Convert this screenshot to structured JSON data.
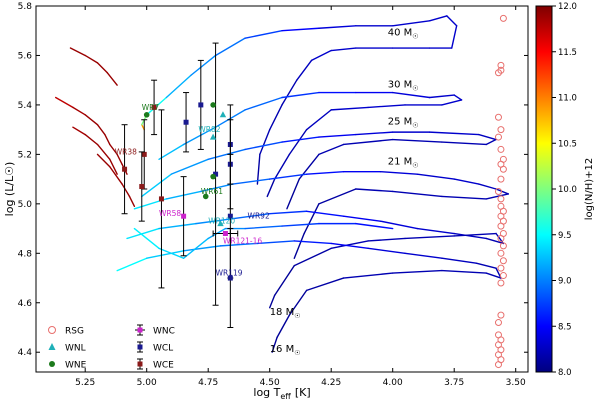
{
  "chart_data": {
    "type": "scatter",
    "xlabel_main": "log T",
    "xlabel_sub": "eff",
    "xlabel_unit": "[K]",
    "ylabel": "log (L/L☉)",
    "xlim": [
      5.45,
      3.45
    ],
    "ylim": [
      4.32,
      5.8
    ],
    "x_inverted": true,
    "xticks": [
      5.25,
      5.0,
      4.75,
      4.5,
      4.25,
      4.0,
      3.75,
      3.5
    ],
    "xtick_labels": [
      "5.25",
      "5.00",
      "4.75",
      "4.50",
      "4.25",
      "4.00",
      "3.75",
      "3.50"
    ],
    "yticks": [
      4.4,
      4.6,
      4.8,
      5.0,
      5.2,
      5.4,
      5.6,
      5.8
    ],
    "ytick_labels": [
      "4.4",
      "4.6",
      "4.8",
      "5.0",
      "5.2",
      "5.4",
      "5.6",
      "5.8"
    ],
    "colorbar": {
      "label": "log(N/H)+12",
      "min": 8.0,
      "max": 12.0,
      "ticks": [
        8.0,
        8.5,
        9.0,
        9.5,
        10.0,
        10.5,
        11.0,
        11.5,
        12.0
      ],
      "tick_labels": [
        "8.0",
        "8.5",
        "9.0",
        "9.5",
        "10.0",
        "10.5",
        "11.0",
        "11.5",
        "12.0"
      ],
      "colors": [
        "#00007f",
        "#0000ff",
        "#007fff",
        "#00ffff",
        "#7fff7f",
        "#ffff00",
        "#ff7f00",
        "#ff0000",
        "#7f0000"
      ]
    },
    "legend": {
      "placement": "bottom-left",
      "entries": [
        {
          "label": "RSG",
          "marker": "open-circle",
          "color": "#e8706e"
        },
        {
          "label": "WNL",
          "marker": "triangle",
          "color": "#1fb0b8"
        },
        {
          "label": "WNE",
          "marker": "circle",
          "color": "#1c7a1c"
        },
        {
          "label": "WNC",
          "marker": "errorbar-square",
          "color": "#cc22cc"
        },
        {
          "label": "WCL",
          "marker": "errorbar-square",
          "color": "#1a1a90"
        },
        {
          "label": "WCE",
          "marker": "errorbar-square",
          "color": "#8b1a1a"
        }
      ]
    },
    "track_labels": [
      {
        "text": "40 M",
        "x": 4.02,
        "y": 5.68
      },
      {
        "text": "30 M",
        "x": 4.02,
        "y": 5.47
      },
      {
        "text": "25 M",
        "x": 4.02,
        "y": 5.32
      },
      {
        "text": "21 M",
        "x": 4.02,
        "y": 5.16
      },
      {
        "text": "18 M",
        "x": 4.5,
        "y": 4.55
      },
      {
        "text": "16 M",
        "x": 4.5,
        "y": 4.4
      }
    ],
    "star_labels": [
      {
        "text": "WR7",
        "x": 5.02,
        "y": 5.38,
        "color": "#1c7a1c"
      },
      {
        "text": "WR38",
        "x": 5.13,
        "y": 5.2,
        "color": "#8b1a1a"
      },
      {
        "text": "WR82",
        "x": 4.79,
        "y": 5.29,
        "color": "#1fb0b8"
      },
      {
        "text": "WR61",
        "x": 4.78,
        "y": 5.04,
        "color": "#1c7a1c"
      },
      {
        "text": "WR58",
        "x": 4.95,
        "y": 4.95,
        "color": "#cc22cc"
      },
      {
        "text": "WR120",
        "x": 4.75,
        "y": 4.92,
        "color": "#1fb0b8"
      },
      {
        "text": "WR92",
        "x": 4.59,
        "y": 4.94,
        "color": "#1a1a90"
      },
      {
        "text": "WR121-16",
        "x": 4.69,
        "y": 4.84,
        "color": "#cc22cc"
      },
      {
        "text": "WR119",
        "x": 4.72,
        "y": 4.71,
        "color": "#1a1a90"
      }
    ],
    "rsg": [
      {
        "x": 3.55,
        "y": 5.75
      },
      {
        "x": 3.56,
        "y": 5.56
      },
      {
        "x": 3.56,
        "y": 5.54
      },
      {
        "x": 3.57,
        "y": 5.53
      },
      {
        "x": 3.57,
        "y": 5.35
      },
      {
        "x": 3.56,
        "y": 5.3
      },
      {
        "x": 3.57,
        "y": 5.27
      },
      {
        "x": 3.56,
        "y": 5.22
      },
      {
        "x": 3.55,
        "y": 5.18
      },
      {
        "x": 3.56,
        "y": 5.16
      },
      {
        "x": 3.55,
        "y": 5.14
      },
      {
        "x": 3.56,
        "y": 5.1
      },
      {
        "x": 3.57,
        "y": 5.05
      },
      {
        "x": 3.56,
        "y": 5.02
      },
      {
        "x": 3.56,
        "y": 4.99
      },
      {
        "x": 3.55,
        "y": 4.97
      },
      {
        "x": 3.56,
        "y": 4.95
      },
      {
        "x": 3.55,
        "y": 4.93
      },
      {
        "x": 3.56,
        "y": 4.91
      },
      {
        "x": 3.55,
        "y": 4.88
      },
      {
        "x": 3.56,
        "y": 4.86
      },
      {
        "x": 3.55,
        "y": 4.83
      },
      {
        "x": 3.56,
        "y": 4.8
      },
      {
        "x": 3.55,
        "y": 4.77
      },
      {
        "x": 3.56,
        "y": 4.74
      },
      {
        "x": 3.55,
        "y": 4.71
      },
      {
        "x": 3.56,
        "y": 4.68
      },
      {
        "x": 3.56,
        "y": 4.55
      },
      {
        "x": 3.57,
        "y": 4.52
      },
      {
        "x": 3.57,
        "y": 4.47
      },
      {
        "x": 3.56,
        "y": 4.45
      },
      {
        "x": 3.57,
        "y": 4.43
      },
      {
        "x": 3.56,
        "y": 4.41
      },
      {
        "x": 3.57,
        "y": 4.39
      },
      {
        "x": 3.56,
        "y": 4.37
      },
      {
        "x": 3.57,
        "y": 4.35
      }
    ],
    "wnl": [
      {
        "x": 4.69,
        "y": 5.36
      },
      {
        "x": 4.73,
        "y": 5.27
      },
      {
        "x": 4.7,
        "y": 4.92
      }
    ],
    "wne": [
      {
        "x": 5.0,
        "y": 5.36
      },
      {
        "x": 4.73,
        "y": 5.4
      },
      {
        "x": 4.76,
        "y": 5.03
      },
      {
        "x": 4.73,
        "y": 5.11
      }
    ],
    "wnc": [
      {
        "x": 4.85,
        "y": 4.95,
        "yerr": 0.16
      },
      {
        "x": 4.68,
        "y": 4.88,
        "xerr": 0.05
      }
    ],
    "wcl": [
      {
        "x": 4.84,
        "y": 5.33,
        "yerr": 0.12
      },
      {
        "x": 4.78,
        "y": 5.4,
        "yerr": 0.18
      },
      {
        "x": 4.66,
        "y": 5.24,
        "yerr": 0.16
      },
      {
        "x": 4.66,
        "y": 5.16,
        "yerr": 0.18
      },
      {
        "x": 4.66,
        "y": 4.95,
        "yerr": 0.25
      },
      {
        "x": 4.66,
        "y": 4.7,
        "yerr": 0.2
      },
      {
        "x": 4.72,
        "y": 5.12,
        "yerr": 0.53
      }
    ],
    "wce": [
      {
        "x": 4.97,
        "y": 5.39,
        "yerr": 0.11
      },
      {
        "x": 5.01,
        "y": 5.2,
        "yerr": 0.14
      },
      {
        "x": 5.02,
        "y": 5.07,
        "yerr": 0.14
      },
      {
        "x": 5.09,
        "y": 5.14,
        "yerr": 0.18
      },
      {
        "x": 4.94,
        "y": 5.02,
        "yerr": 0.36
      }
    ],
    "tracks": [
      {
        "name": "40",
        "points": [
          [
            5.01,
            5.3,
            11.6
          ],
          [
            5.02,
            5.32,
            10.2
          ],
          [
            5.0,
            5.36,
            9.8
          ],
          [
            4.92,
            5.43,
            9.3
          ],
          [
            4.82,
            5.52,
            9.1
          ],
          [
            4.72,
            5.6,
            9.0
          ],
          [
            4.6,
            5.67,
            8.9
          ],
          [
            4.45,
            5.7,
            8.6
          ],
          [
            4.3,
            5.71,
            8.4
          ],
          [
            4.15,
            5.72,
            8.3
          ],
          [
            4.0,
            5.72,
            8.3
          ],
          [
            3.85,
            5.74,
            8.3
          ],
          [
            3.78,
            5.76,
            8.3
          ],
          [
            3.74,
            5.72,
            8.3
          ],
          [
            3.76,
            5.63,
            8.3
          ],
          [
            3.85,
            5.63,
            8.3
          ],
          [
            4.0,
            5.63,
            8.3
          ],
          [
            4.15,
            5.63,
            8.3
          ],
          [
            4.25,
            5.62,
            8.3
          ],
          [
            4.33,
            5.58,
            8.3
          ],
          [
            4.39,
            5.5,
            8.2
          ],
          [
            4.45,
            5.4,
            8.2
          ],
          [
            4.5,
            5.3,
            8.2
          ],
          [
            4.54,
            5.2,
            8.2
          ],
          [
            4.55,
            5.08,
            8.1
          ]
        ]
      },
      {
        "name": "30",
        "points": [
          [
            4.95,
            5.18,
            9.3
          ],
          [
            4.85,
            5.24,
            9.2
          ],
          [
            4.72,
            5.31,
            9.0
          ],
          [
            4.6,
            5.38,
            9.0
          ],
          [
            4.45,
            5.43,
            8.8
          ],
          [
            4.3,
            5.45,
            8.6
          ],
          [
            4.15,
            5.45,
            8.5
          ],
          [
            4.0,
            5.45,
            8.4
          ],
          [
            3.85,
            5.43,
            8.3
          ],
          [
            3.75,
            5.44,
            8.3
          ],
          [
            3.72,
            5.42,
            8.3
          ],
          [
            3.8,
            5.4,
            8.3
          ],
          [
            3.95,
            5.4,
            8.3
          ],
          [
            4.1,
            5.39,
            8.3
          ],
          [
            4.25,
            5.38,
            8.3
          ],
          [
            4.35,
            5.3,
            8.2
          ],
          [
            4.42,
            5.2,
            8.2
          ],
          [
            4.48,
            5.1,
            8.2
          ],
          [
            4.51,
            5.03,
            8.1
          ]
        ]
      },
      {
        "name": "25",
        "points": [
          [
            5.02,
            5.03,
            9.4
          ],
          [
            4.9,
            5.12,
            9.2
          ],
          [
            4.75,
            5.18,
            9.0
          ],
          [
            4.6,
            5.22,
            8.9
          ],
          [
            4.45,
            5.25,
            8.7
          ],
          [
            4.3,
            5.27,
            8.5
          ],
          [
            4.15,
            5.28,
            8.4
          ],
          [
            4.0,
            5.29,
            8.3
          ],
          [
            3.85,
            5.29,
            8.3
          ],
          [
            3.65,
            5.28,
            8.3
          ],
          [
            3.58,
            5.26,
            8.2
          ],
          [
            3.62,
            5.24,
            8.2
          ],
          [
            3.8,
            5.25,
            8.2
          ],
          [
            4.0,
            5.26,
            8.2
          ],
          [
            4.2,
            5.24,
            8.2
          ],
          [
            4.3,
            5.2,
            8.2
          ],
          [
            4.38,
            5.1,
            8.1
          ],
          [
            4.43,
            4.98,
            8.1
          ]
        ]
      },
      {
        "name": "21",
        "points": [
          [
            5.05,
            4.98,
            9.5
          ],
          [
            4.92,
            5.02,
            9.3
          ],
          [
            4.78,
            5.05,
            9.1
          ],
          [
            4.65,
            5.08,
            9.0
          ],
          [
            4.5,
            5.1,
            8.8
          ],
          [
            4.35,
            5.12,
            8.6
          ],
          [
            4.2,
            5.13,
            8.5
          ],
          [
            4.05,
            5.13,
            8.4
          ],
          [
            3.9,
            5.12,
            8.3
          ],
          [
            3.75,
            5.1,
            8.3
          ],
          [
            3.65,
            5.08,
            8.3
          ],
          [
            3.58,
            5.06,
            8.2
          ],
          [
            3.53,
            5.04,
            8.2
          ],
          [
            3.62,
            5.02,
            8.2
          ],
          [
            3.8,
            5.03,
            8.2
          ],
          [
            4.0,
            5.05,
            8.2
          ],
          [
            4.15,
            5.06,
            8.2
          ],
          [
            4.3,
            5.0,
            8.1
          ],
          [
            4.36,
            4.88,
            8.1
          ],
          [
            4.4,
            4.78,
            8.1
          ]
        ]
      },
      {
        "name": "18",
        "points": [
          [
            5.08,
            4.86,
            9.5
          ],
          [
            4.95,
            4.9,
            9.3
          ],
          [
            4.8,
            4.92,
            9.1
          ],
          [
            4.65,
            4.94,
            9.0
          ],
          [
            4.5,
            4.96,
            8.8
          ],
          [
            4.35,
            4.97,
            8.6
          ],
          [
            4.2,
            4.95,
            8.5
          ],
          [
            4.05,
            4.93,
            8.4
          ],
          [
            3.9,
            4.9,
            8.3
          ],
          [
            3.75,
            4.88,
            8.3
          ],
          [
            3.62,
            4.86,
            8.2
          ],
          [
            3.55,
            4.84,
            8.2
          ],
          [
            3.58,
            4.88,
            8.2
          ],
          [
            3.75,
            4.87,
            8.2
          ],
          [
            3.95,
            4.86,
            8.2
          ],
          [
            4.1,
            4.85,
            8.2
          ],
          [
            4.25,
            4.82,
            8.2
          ],
          [
            4.4,
            4.75,
            8.1
          ],
          [
            4.48,
            4.63,
            8.1
          ],
          [
            4.5,
            4.58,
            8.1
          ]
        ]
      },
      {
        "name": "16",
        "points": [
          [
            5.12,
            4.73,
            9.6
          ],
          [
            5.0,
            4.78,
            9.4
          ],
          [
            4.85,
            4.81,
            9.2
          ],
          [
            4.7,
            4.83,
            9.0
          ],
          [
            4.55,
            4.84,
            8.9
          ],
          [
            4.4,
            4.85,
            8.7
          ],
          [
            4.25,
            4.84,
            8.5
          ],
          [
            4.1,
            4.82,
            8.4
          ],
          [
            3.95,
            4.8,
            8.3
          ],
          [
            3.8,
            4.78,
            8.3
          ],
          [
            3.66,
            4.76,
            8.2
          ],
          [
            3.58,
            4.74,
            8.2
          ],
          [
            3.56,
            4.7,
            8.2
          ],
          [
            3.62,
            4.72,
            8.2
          ],
          [
            3.8,
            4.73,
            8.2
          ],
          [
            4.0,
            4.72,
            8.2
          ],
          [
            4.2,
            4.7,
            8.2
          ],
          [
            4.35,
            4.65,
            8.1
          ],
          [
            4.42,
            4.55,
            8.1
          ],
          [
            4.47,
            4.46,
            8.1
          ],
          [
            4.49,
            4.4,
            8.1
          ]
        ]
      },
      {
        "name": "wce-track-1",
        "points": [
          [
            5.37,
            5.43,
            11.7
          ],
          [
            5.3,
            5.39,
            11.8
          ],
          [
            5.25,
            5.36,
            11.9
          ],
          [
            5.2,
            5.32,
            11.9
          ],
          [
            5.17,
            5.28,
            11.9
          ],
          [
            5.15,
            5.24,
            11.9
          ],
          [
            5.12,
            5.2,
            11.9
          ],
          [
            5.1,
            5.16,
            11.9
          ],
          [
            5.08,
            5.12,
            11.9
          ]
        ]
      },
      {
        "name": "wce-track-2",
        "points": [
          [
            5.31,
            5.63,
            11.9
          ],
          [
            5.25,
            5.6,
            11.9
          ],
          [
            5.2,
            5.57,
            11.9
          ],
          [
            5.16,
            5.53,
            11.9
          ],
          [
            5.12,
            5.48,
            11.9
          ]
        ]
      },
      {
        "name": "wce-track-3",
        "points": [
          [
            5.3,
            5.31,
            11.8
          ],
          [
            5.25,
            5.28,
            11.9
          ],
          [
            5.2,
            5.24,
            11.9
          ],
          [
            5.15,
            5.18,
            11.9
          ],
          [
            5.12,
            5.12,
            11.9
          ]
        ]
      },
      {
        "name": "wce-track-4",
        "points": [
          [
            5.2,
            5.2,
            11.9
          ],
          [
            5.15,
            5.15,
            11.9
          ],
          [
            5.1,
            5.08,
            11.9
          ],
          [
            5.07,
            5.03,
            11.9
          ],
          [
            5.05,
            4.99,
            11.9
          ]
        ]
      },
      {
        "name": "low-track",
        "points": [
          [
            5.05,
            4.9,
            9.5
          ],
          [
            4.95,
            4.82,
            9.4
          ],
          [
            4.85,
            4.78,
            9.3
          ],
          [
            4.75,
            4.86,
            9.2
          ],
          [
            4.68,
            4.9,
            9.1
          ],
          [
            4.6,
            4.9,
            9.0
          ],
          [
            4.45,
            4.91,
            8.8
          ],
          [
            4.3,
            4.92,
            8.7
          ],
          [
            4.15,
            4.92,
            8.6
          ],
          [
            4.0,
            4.9,
            8.5
          ]
        ]
      }
    ]
  }
}
